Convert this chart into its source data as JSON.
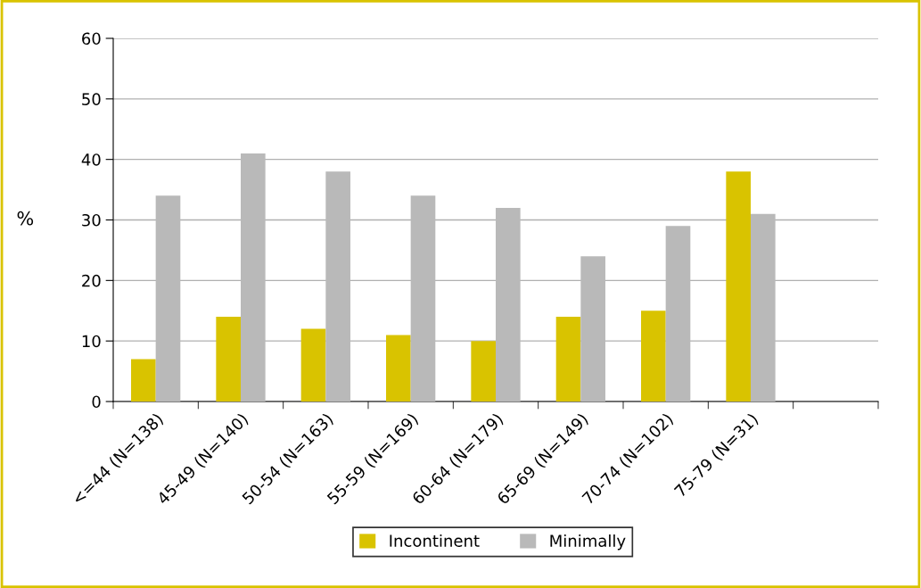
{
  "chart_data": {
    "type": "bar",
    "ylabel": "%",
    "categories": [
      "<=44 (N=138)",
      "45-49 (N=140)",
      "50-54 (N=163)",
      "55-59 (N=169)",
      "60-64 (N=179)",
      "65-69 (N=149)",
      "70-74 (N=102)",
      "75-79 (N=31)",
      null
    ],
    "series": [
      {
        "name": "Incontinent",
        "color": "#d9c300",
        "values": [
          7,
          14,
          12,
          11,
          10,
          14,
          15,
          38,
          null
        ]
      },
      {
        "name": "Minimally",
        "color": "#b9b9b9",
        "values": [
          34,
          41,
          38,
          34,
          32,
          24,
          29,
          31,
          null
        ]
      }
    ],
    "ylim": [
      0,
      60
    ],
    "yticks": [
      0,
      10,
      20,
      30,
      40,
      50,
      60
    ],
    "grid": "y",
    "legend": "bottom"
  }
}
